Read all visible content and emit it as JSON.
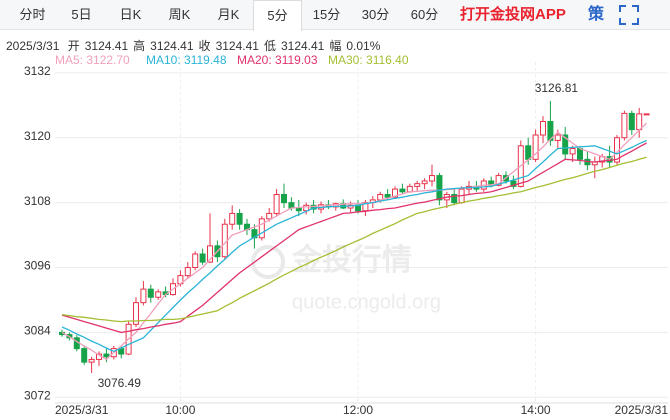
{
  "tabs": [
    "分时",
    "5日",
    "日K",
    "周K",
    "月K",
    "5分",
    "15分",
    "30分",
    "60分"
  ],
  "active_tab": "5分",
  "app_link": "打开金投网APP",
  "strategy": "策",
  "info": {
    "date": "2025/3/31",
    "items": [
      {
        "label": "开",
        "value": 3124.41
      },
      {
        "label": "高",
        "value": 3124.41
      },
      {
        "label": "收",
        "value": 3124.41
      },
      {
        "label": "低",
        "value": 3124.41
      },
      {
        "label": "幅",
        "value": "0.01%"
      }
    ]
  },
  "watermark": {
    "title": "金投行情",
    "url": "quote.cngold.org"
  },
  "chart_data": {
    "type": "candlestick",
    "up_color": "#e8334a",
    "down_color": "#17a34a",
    "ylim": [
      3071.5,
      3134
    ],
    "yticks": [
      3072,
      3084,
      3096,
      3108,
      3120,
      3132
    ],
    "grid": true,
    "categories": [
      "2025/3/31",
      null,
      null,
      null,
      null,
      null,
      null,
      null,
      null,
      null,
      null,
      null,
      null,
      null,
      null,
      null,
      "10:00",
      null,
      null,
      null,
      null,
      null,
      null,
      null,
      null,
      null,
      null,
      null,
      null,
      null,
      null,
      null,
      null,
      null,
      null,
      null,
      null,
      null,
      null,
      null,
      "12:00",
      null,
      null,
      null,
      null,
      null,
      null,
      null,
      null,
      null,
      null,
      null,
      null,
      null,
      null,
      null,
      null,
      null,
      null,
      null,
      null,
      null,
      null,
      null,
      "14:00",
      null,
      null,
      null,
      null,
      null,
      null,
      null,
      null,
      null,
      null,
      null,
      null,
      null,
      null,
      "2025/3/31"
    ],
    "open": [
      3084,
      3083.6,
      3083,
      3081,
      3078.5,
      3079,
      3080,
      3079.5,
      3081,
      3080,
      3085.5,
      3089.5,
      3092,
      3090.5,
      3091.5,
      3091,
      3093,
      3094.5,
      3096,
      3098.5,
      3097,
      3100,
      3098,
      3104,
      3106,
      3104,
      3103,
      3101.5,
      3105,
      3106,
      3109.5,
      3108,
      3107,
      3106.5,
      3107.5,
      3106.8,
      3107.6,
      3107.2,
      3107.8,
      3107,
      3107.5,
      3106.5,
      3108,
      3108.5,
      3109.5,
      3109,
      3110.5,
      3110,
      3111,
      3111.5,
      3112,
      3113,
      3108.5,
      3109.5,
      3108,
      3110.5,
      3111,
      3110.5,
      3112,
      3111.2,
      3113,
      3112,
      3111,
      3118.5,
      3116,
      3120.5,
      3123,
      3119.5,
      3120.5,
      3117,
      3118,
      3116,
      3115,
      3115.5,
      3116.5,
      3115.5,
      3120,
      3124.5,
      3121.5,
      3124.41
    ],
    "high": [
      3084.5,
      3084,
      3083.5,
      3081.5,
      3079.5,
      3080.5,
      3081,
      3081.5,
      3081.5,
      3086,
      3090.5,
      3093.5,
      3092.8,
      3092,
      3092.5,
      3094,
      3095.5,
      3097,
      3099,
      3099.5,
      3106,
      3101,
      3105,
      3107.5,
      3106.8,
      3105,
      3104,
      3105.5,
      3107,
      3110.5,
      3111.5,
      3109,
      3108.5,
      3108,
      3108.5,
      3108.2,
      3108.5,
      3108,
      3108.6,
      3108.2,
      3108.5,
      3108.5,
      3109.2,
      3110,
      3110.5,
      3111,
      3111.5,
      3111.5,
      3112,
      3112.5,
      3115,
      3113.5,
      3110,
      3110.5,
      3111,
      3112,
      3112,
      3112.5,
      3112.8,
      3113.5,
      3113.8,
      3113,
      3119.5,
      3120,
      3121.5,
      3124,
      3126.81,
      3121.5,
      3122,
      3118.5,
      3118.5,
      3117.5,
      3116.5,
      3117,
      3118.5,
      3120.5,
      3125,
      3125,
      3125.5,
      3124.41
    ],
    "low": [
      3083.2,
      3082.5,
      3080.5,
      3078,
      3076.49,
      3077.8,
      3078.5,
      3079,
      3079.2,
      3079.8,
      3085,
      3089,
      3089.5,
      3090,
      3090.5,
      3090.8,
      3092.5,
      3094,
      3095.5,
      3096.5,
      3096.8,
      3097,
      3097.5,
      3103,
      3103,
      3102,
      3099.5,
      3101,
      3104.5,
      3105.5,
      3107,
      3106.5,
      3105.5,
      3105.8,
      3106,
      3106,
      3106.8,
      3106.5,
      3106.8,
      3106.2,
      3106,
      3105.5,
      3107,
      3108,
      3108.5,
      3108.8,
      3109.5,
      3109.8,
      3110.2,
      3110.5,
      3111,
      3107.5,
      3107,
      3107.5,
      3107.8,
      3109.5,
      3110,
      3110,
      3110.8,
      3111,
      3111.5,
      3110.5,
      3110.8,
      3115,
      3115.5,
      3119,
      3118.5,
      3118,
      3116,
      3115.5,
      3115,
      3114,
      3112.5,
      3114.5,
      3114.5,
      3115,
      3119.5,
      3120.5,
      3120,
      3124.41
    ],
    "close": [
      3083.6,
      3083,
      3081,
      3078.5,
      3079,
      3080,
      3079.5,
      3081,
      3080,
      3085.5,
      3089.5,
      3092,
      3090.5,
      3091.5,
      3091,
      3093,
      3094.5,
      3096,
      3098.5,
      3097,
      3100,
      3098,
      3104,
      3106,
      3104,
      3103,
      3101.5,
      3105,
      3106,
      3109.5,
      3108,
      3107,
      3106.5,
      3107.5,
      3106.8,
      3107.6,
      3107.2,
      3107.8,
      3107,
      3107.5,
      3106.5,
      3108,
      3108.5,
      3109.5,
      3109,
      3110.5,
      3110,
      3111,
      3111.5,
      3112,
      3113,
      3108.5,
      3109.5,
      3108,
      3110.5,
      3111,
      3110.5,
      3112,
      3111.2,
      3113,
      3112,
      3111,
      3118.5,
      3116,
      3120.5,
      3123,
      3119.5,
      3120.5,
      3117,
      3118,
      3116,
      3115,
      3115.5,
      3116.5,
      3115.5,
      3120,
      3124.5,
      3121.5,
      3124.4,
      3124.41
    ],
    "series": [
      {
        "name": "MA5: 3122.70",
        "color": "#f0a0bd",
        "values": [
          3084,
          3083.2,
          3082.3,
          3081.5,
          3080.7,
          3079.8,
          3079,
          3080.3,
          3081.5,
          3082.8,
          3084,
          3085.8,
          3087.5,
          3089.3,
          3091,
          3092,
          3093,
          3094,
          3095,
          3096,
          3097.5,
          3099,
          3100.5,
          3102,
          3102.5,
          3103,
          3103.5,
          3104,
          3104.8,
          3105.5,
          3106.3,
          3107,
          3107.1,
          3107.2,
          3107.3,
          3107.4,
          3107.5,
          3107.6,
          3107.7,
          3107.8,
          3107.8,
          3107.9,
          3108,
          3108.4,
          3108.8,
          3109.2,
          3109.6,
          3110,
          3110.1,
          3110.2,
          3110.3,
          3110.3,
          3110.4,
          3110.5,
          3110.7,
          3110.8,
          3111,
          3111.2,
          3111.3,
          3111.5,
          3112.6,
          3113.7,
          3114.8,
          3115.9,
          3117,
          3118.3,
          3119.7,
          3121,
          3120,
          3119,
          3118,
          3117.5,
          3117,
          3116.5,
          3116,
          3117.3,
          3118.7,
          3120,
          3121.4,
          3122.7
        ]
      },
      {
        "name": "MA10: 3119.48",
        "color": "#2ab4d6",
        "values": [
          3085,
          3084.4,
          3083.7,
          3083.1,
          3082.4,
          3081.8,
          3081.1,
          3080.5,
          3081.1,
          3081.8,
          3082.4,
          3083,
          3084.4,
          3085.8,
          3087.2,
          3088.6,
          3090,
          3091.3,
          3092.5,
          3093.8,
          3095,
          3096.3,
          3097.5,
          3098.8,
          3100,
          3100.8,
          3101.6,
          3102.4,
          3103.2,
          3104,
          3104.6,
          3105.2,
          3105.8,
          3106.4,
          3107,
          3107.1,
          3107.2,
          3107.3,
          3107.3,
          3107.4,
          3107.5,
          3107.8,
          3108,
          3108.3,
          3108.5,
          3108.8,
          3109,
          3109.3,
          3109.5,
          3109.8,
          3110,
          3110.3,
          3110.5,
          3110.6,
          3110.7,
          3110.8,
          3110.8,
          3110.9,
          3111,
          3111.4,
          3111.8,
          3112.2,
          3112.6,
          3113,
          3114.3,
          3115.5,
          3116.8,
          3118,
          3118.1,
          3118.2,
          3118.3,
          3118.4,
          3118.5,
          3118,
          3117.5,
          3117,
          3117.6,
          3118.2,
          3118.9,
          3119.48
        ]
      },
      {
        "name": "MA20: 3119.03",
        "color": "#e0336b",
        "values": [
          3087.2,
          3086.8,
          3086.4,
          3086,
          3085.6,
          3085.2,
          3084.8,
          3084.4,
          3084,
          3084.2,
          3084.5,
          3084.7,
          3085,
          3085.2,
          3085.5,
          3085.7,
          3086,
          3087,
          3088,
          3089,
          3090.2,
          3091.4,
          3092.6,
          3093.8,
          3095,
          3096,
          3097,
          3098,
          3099,
          3100,
          3101,
          3102,
          3103,
          3103.5,
          3104,
          3104.5,
          3105,
          3105.5,
          3106,
          3106.1,
          3106.3,
          3106.4,
          3106.6,
          3106.7,
          3106.9,
          3107,
          3107.3,
          3107.6,
          3107.9,
          3108.1,
          3108.4,
          3108.7,
          3109,
          3109.2,
          3109.3,
          3109.5,
          3109.7,
          3109.8,
          3110,
          3110.4,
          3110.8,
          3111.2,
          3111.6,
          3112,
          3112.8,
          3113.6,
          3114.4,
          3115.2,
          3116,
          3115.9,
          3115.8,
          3115.6,
          3115.5,
          3115.7,
          3115.8,
          3116,
          3116.8,
          3117.5,
          3118.3,
          3119.03
        ]
      },
      {
        "name": "MA30: 3116.40",
        "color": "#a3bf33",
        "values": [
          3087.3,
          3087.1,
          3086.9,
          3086.8,
          3086.6,
          3086.4,
          3086.3,
          3086.1,
          3086,
          3086.1,
          3086.1,
          3086.2,
          3086.2,
          3086.3,
          3086.4,
          3086.4,
          3086.5,
          3086.8,
          3087.1,
          3087.4,
          3087.7,
          3088,
          3088.8,
          3089.5,
          3090.3,
          3091,
          3091.7,
          3092.4,
          3093.1,
          3093.9,
          3094.6,
          3095.3,
          3096,
          3096.6,
          3097.3,
          3097.9,
          3098.5,
          3099.1,
          3099.8,
          3100.4,
          3101,
          3101.6,
          3102.3,
          3102.9,
          3103.5,
          3104.1,
          3104.8,
          3105.4,
          3106,
          3106.3,
          3106.7,
          3107,
          3107.3,
          3107.7,
          3108,
          3108.3,
          3108.5,
          3108.8,
          3109,
          3109.3,
          3109.5,
          3109.8,
          3110,
          3110.4,
          3110.8,
          3111.1,
          3111.5,
          3111.9,
          3112.3,
          3112.6,
          3113,
          3113.4,
          3113.8,
          3114.1,
          3114.5,
          3114.9,
          3115.3,
          3115.6,
          3116,
          3116.4
        ]
      }
    ]
  }
}
